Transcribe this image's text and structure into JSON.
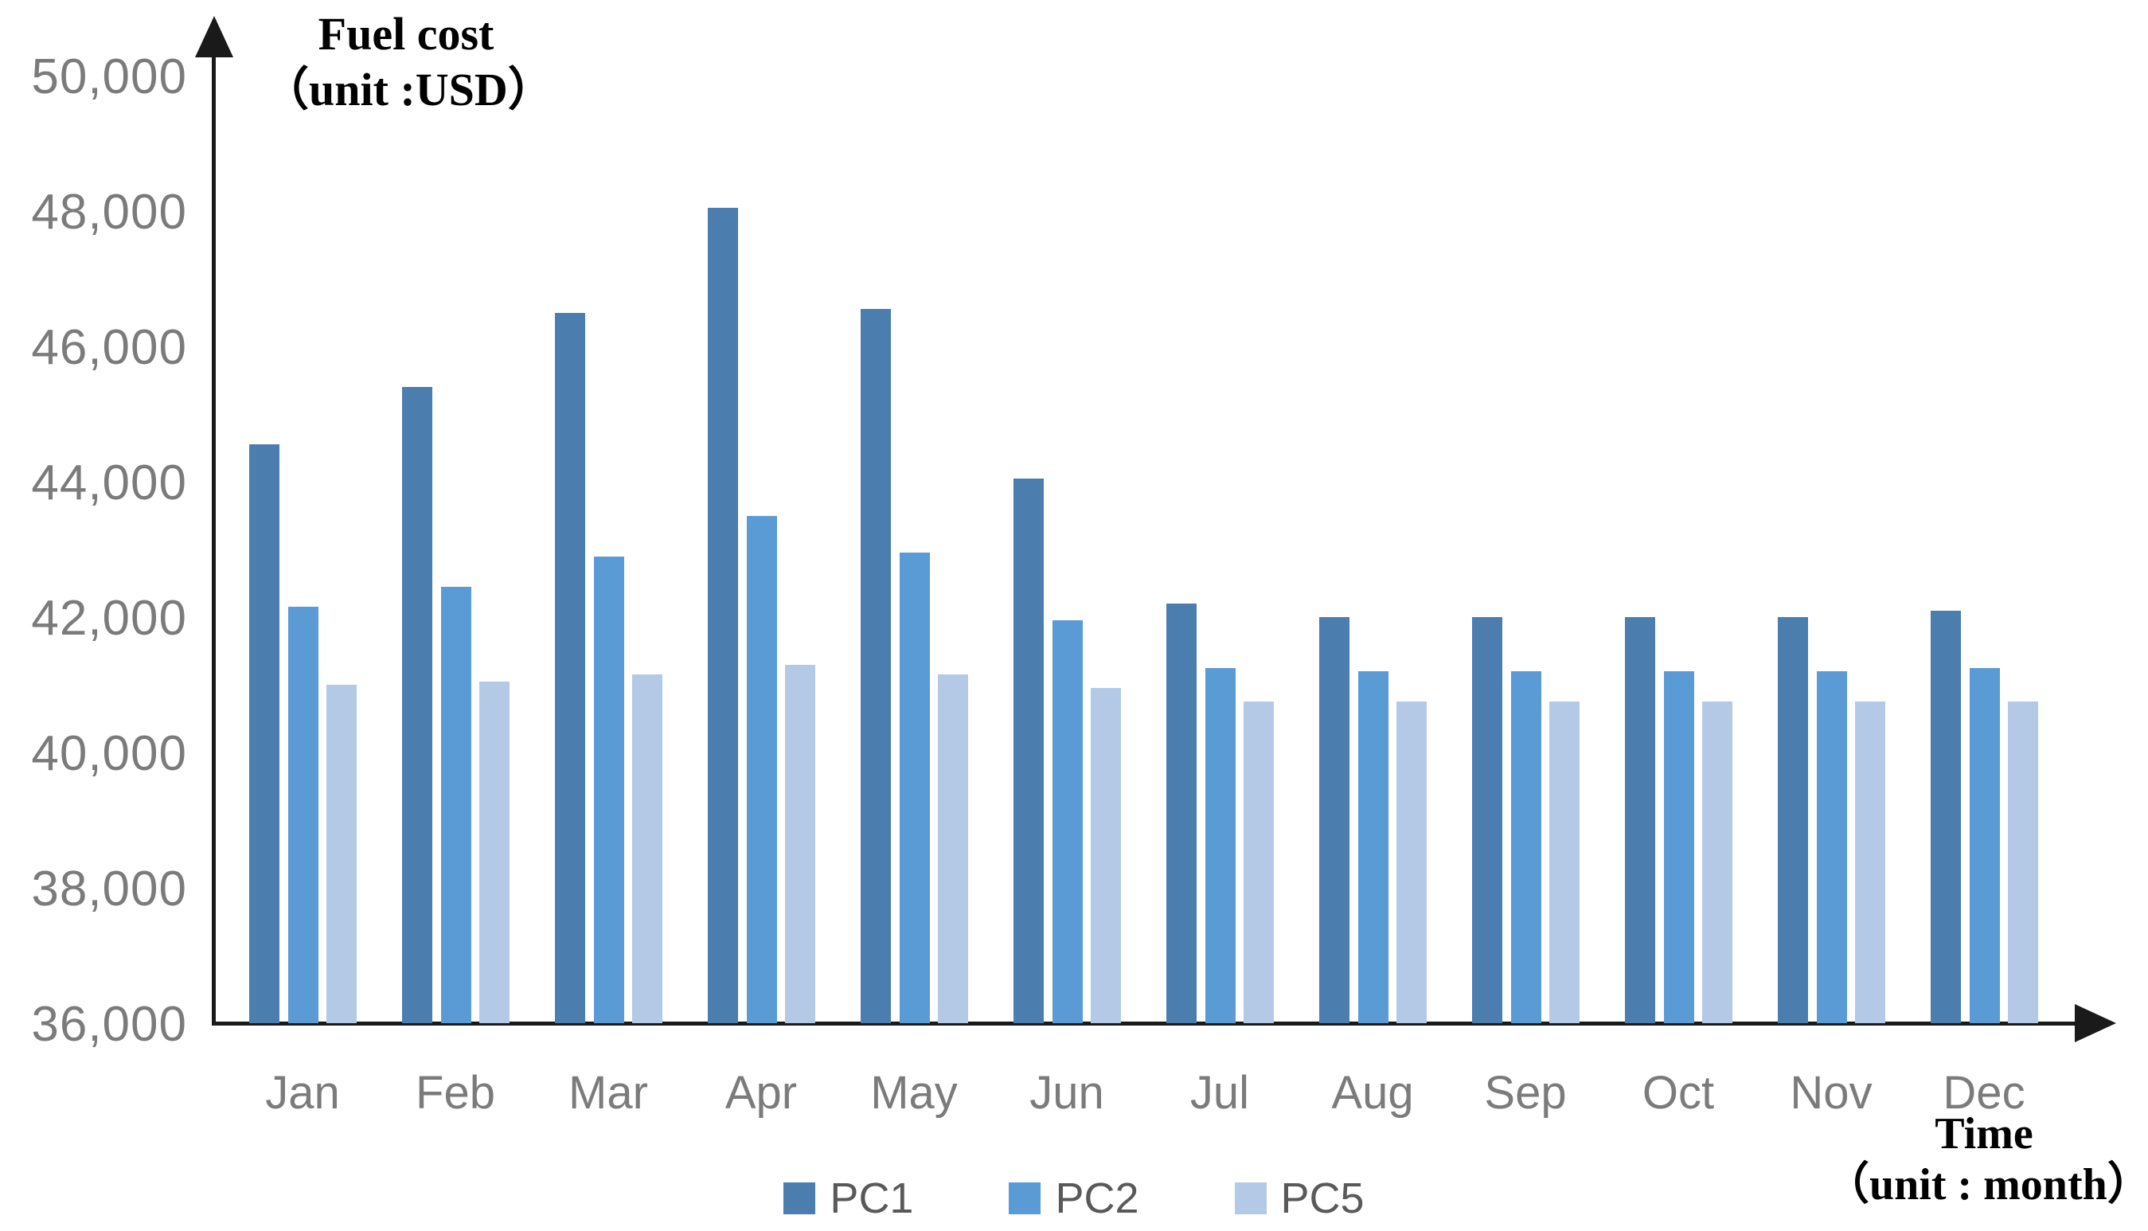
{
  "chart_data": {
    "type": "bar",
    "y_axis_title_line1": "Fuel cost",
    "y_axis_title_line2": "（unit :USD）",
    "x_axis_title_line1": "Time",
    "x_axis_title_line2": "（unit : month）",
    "categories": [
      "Jan",
      "Feb",
      "Mar",
      "Apr",
      "May",
      "Jun",
      "Jul",
      "Aug",
      "Sep",
      "Oct",
      "Nov",
      "Dec"
    ],
    "series": [
      {
        "name": "PC1",
        "color": "#4b7dae",
        "values": [
          44550,
          45400,
          46500,
          48050,
          46550,
          44050,
          42200,
          42000,
          42000,
          42000,
          42000,
          42100
        ]
      },
      {
        "name": "PC2",
        "color": "#5b9bd5",
        "values": [
          42150,
          42450,
          42900,
          43500,
          42950,
          41950,
          41250,
          41200,
          41200,
          41200,
          41200,
          41250
        ]
      },
      {
        "name": "PC5",
        "color": "#b3c9e6",
        "values": [
          41000,
          41050,
          41150,
          41300,
          41150,
          40950,
          40750,
          40750,
          40750,
          40750,
          40750,
          40750
        ]
      }
    ],
    "y_axis": {
      "min": 36000,
      "max": 50000,
      "tick_step": 2000,
      "tick_labels": [
        "50,000",
        "48,000",
        "46,000",
        "44,000",
        "42,000",
        "40,000",
        "38,000",
        "36,000"
      ]
    },
    "legend_position": "bottom",
    "grid": false
  },
  "colors": {
    "axis": "#1a1a1a",
    "tick_text": "#7b7b7b",
    "legend_text": "#595959",
    "background": "#ffffff"
  }
}
